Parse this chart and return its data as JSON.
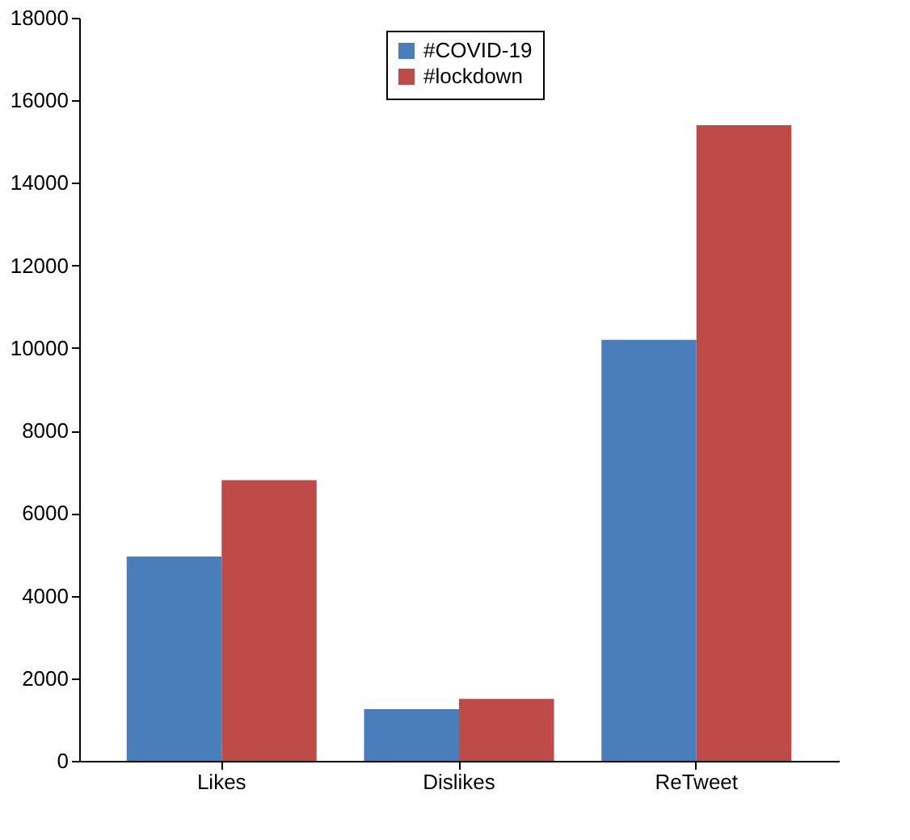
{
  "chart_data": {
    "type": "bar",
    "categories": [
      "Likes",
      "Dislikes",
      "ReTweet"
    ],
    "series": [
      {
        "name": "#COVID-19",
        "color": "#4a7ebb",
        "values": [
          4950,
          1250,
          10200
        ]
      },
      {
        "name": "#lockdown",
        "color": "#be4b48",
        "values": [
          6800,
          1500,
          15400
        ]
      }
    ],
    "ylim": [
      0,
      18000
    ],
    "yticks": [
      0,
      2000,
      4000,
      6000,
      8000,
      10000,
      12000,
      14000,
      16000,
      18000
    ],
    "grid": false,
    "legend": "top"
  }
}
